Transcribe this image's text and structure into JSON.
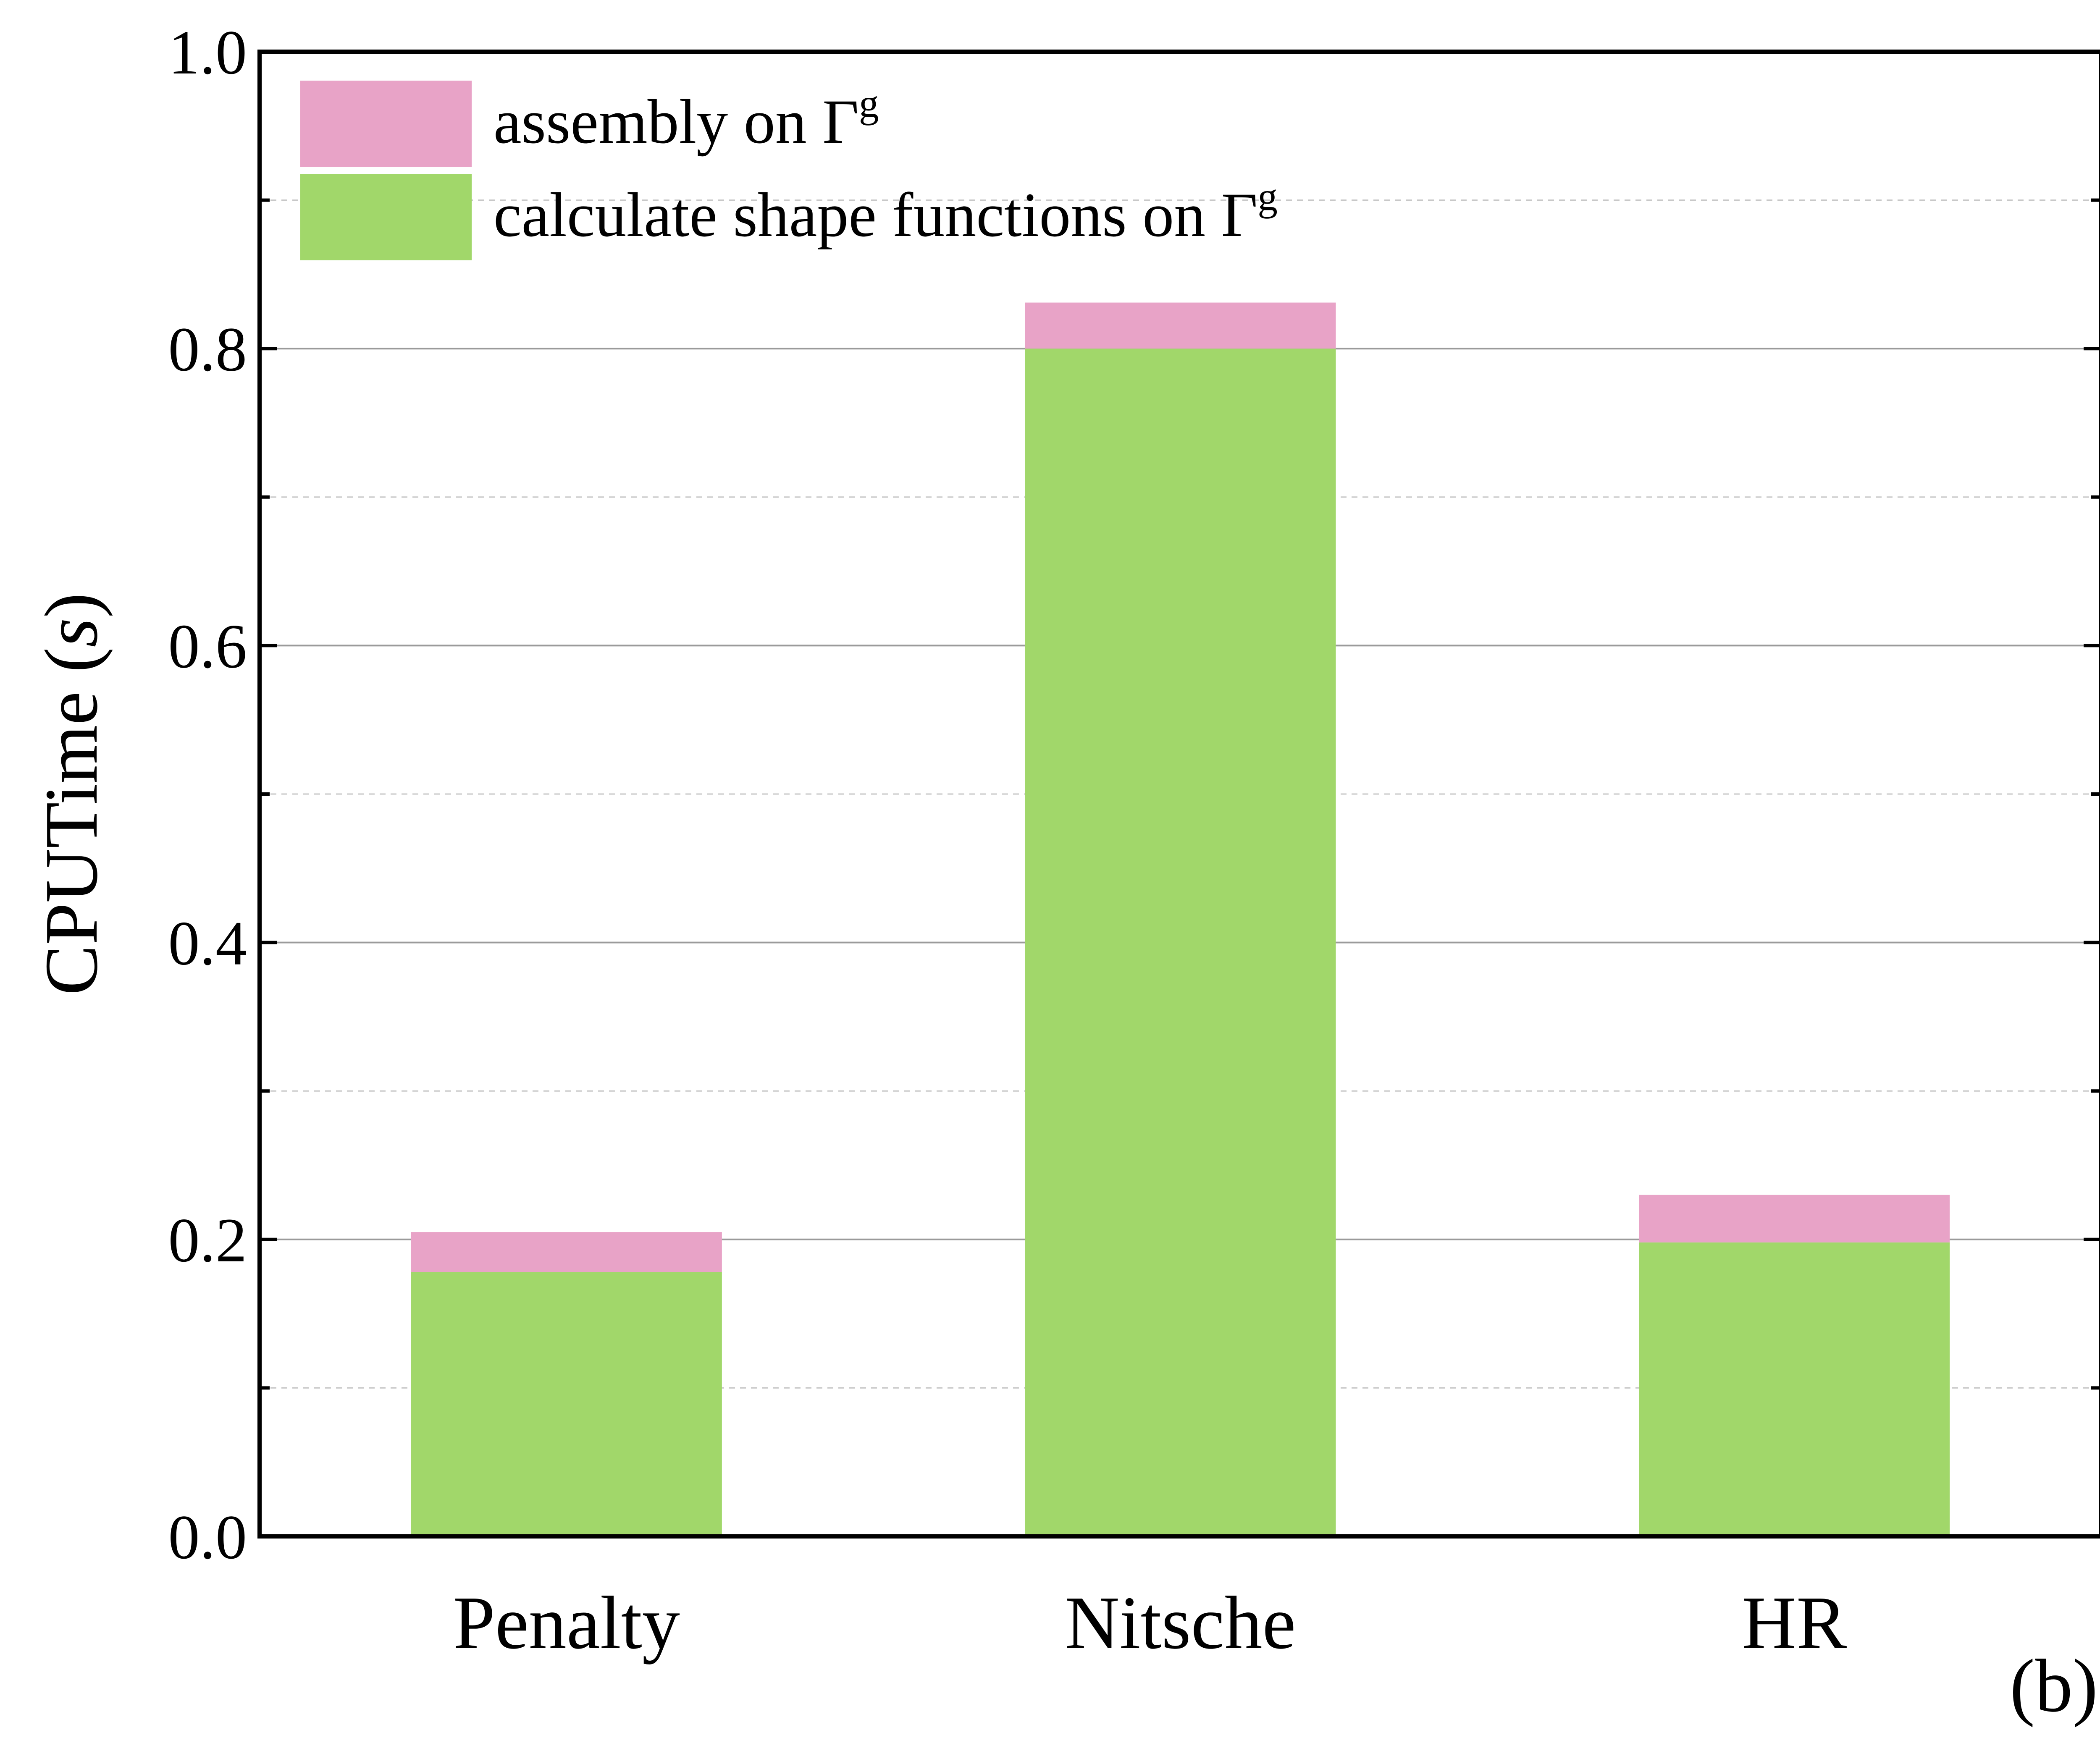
{
  "chart_data": {
    "type": "bar",
    "stacked": true,
    "categories": [
      "Penalty",
      "Nitsche",
      "HR"
    ],
    "series": [
      {
        "name": "calculate shape functions on Γ",
        "name_superscript": "g",
        "values": [
          0.178,
          0.8,
          0.198
        ],
        "color": "#a1d76a"
      },
      {
        "name": "assembly on Γ",
        "name_superscript": "g",
        "values": [
          0.027,
          0.031,
          0.032
        ],
        "color": "#e8a3c7"
      }
    ],
    "title": "",
    "xlabel": "",
    "ylabel": "CPUTime (",
    "ylabel_unit": "s",
    "ylabel_close": ")",
    "ylim": [
      0,
      1.0
    ],
    "yticks": [
      "0.0",
      "0.2",
      "0.4",
      "0.6",
      "0.8",
      "1.0"
    ],
    "grid": {
      "major": "solid",
      "minor": "dashed"
    },
    "legend_position": "top-left",
    "panel_label": "(b)"
  }
}
